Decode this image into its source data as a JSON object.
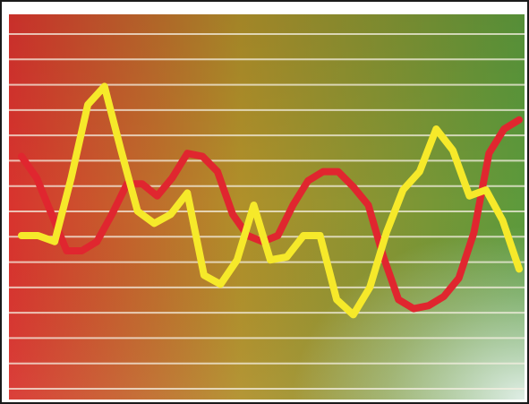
{
  "image": {
    "kind": "stock-style illustration of two fluctuating line graphs over a horizontally ruled gradient background",
    "colors": {
      "background_left": "#d9332e",
      "background_middle": "#b0902a",
      "background_right": "#5c9a3c",
      "background_bottom_right_glow": "#e6f2ee",
      "grid_lines": "#f4efe2",
      "line_red": "#e0262f",
      "line_yellow": "#f6e92a",
      "frame": "#1a1a1a"
    },
    "grid_line_count": 15,
    "series": [
      {
        "id": "red-line",
        "color": "#e0262f",
        "values": [
          0.71,
          0.64,
          0.52,
          0.4,
          0.4,
          0.43,
          0.52,
          0.62,
          0.62,
          0.58,
          0.64,
          0.72,
          0.71,
          0.66,
          0.52,
          0.45,
          0.43,
          0.45,
          0.55,
          0.63,
          0.66,
          0.66,
          0.61,
          0.55,
          0.38,
          0.24,
          0.21,
          0.22,
          0.25,
          0.31,
          0.46,
          0.72,
          0.8,
          0.83
        ]
      },
      {
        "id": "yellow-line",
        "color": "#f6e92a",
        "values": [
          0.45,
          0.45,
          0.43,
          0.64,
          0.88,
          0.94,
          0.73,
          0.53,
          0.49,
          0.52,
          0.59,
          0.32,
          0.29,
          0.37,
          0.55,
          0.37,
          0.38,
          0.45,
          0.45,
          0.24,
          0.19,
          0.28,
          0.46,
          0.6,
          0.66,
          0.8,
          0.73,
          0.58,
          0.6,
          0.5,
          0.34
        ]
      }
    ]
  }
}
